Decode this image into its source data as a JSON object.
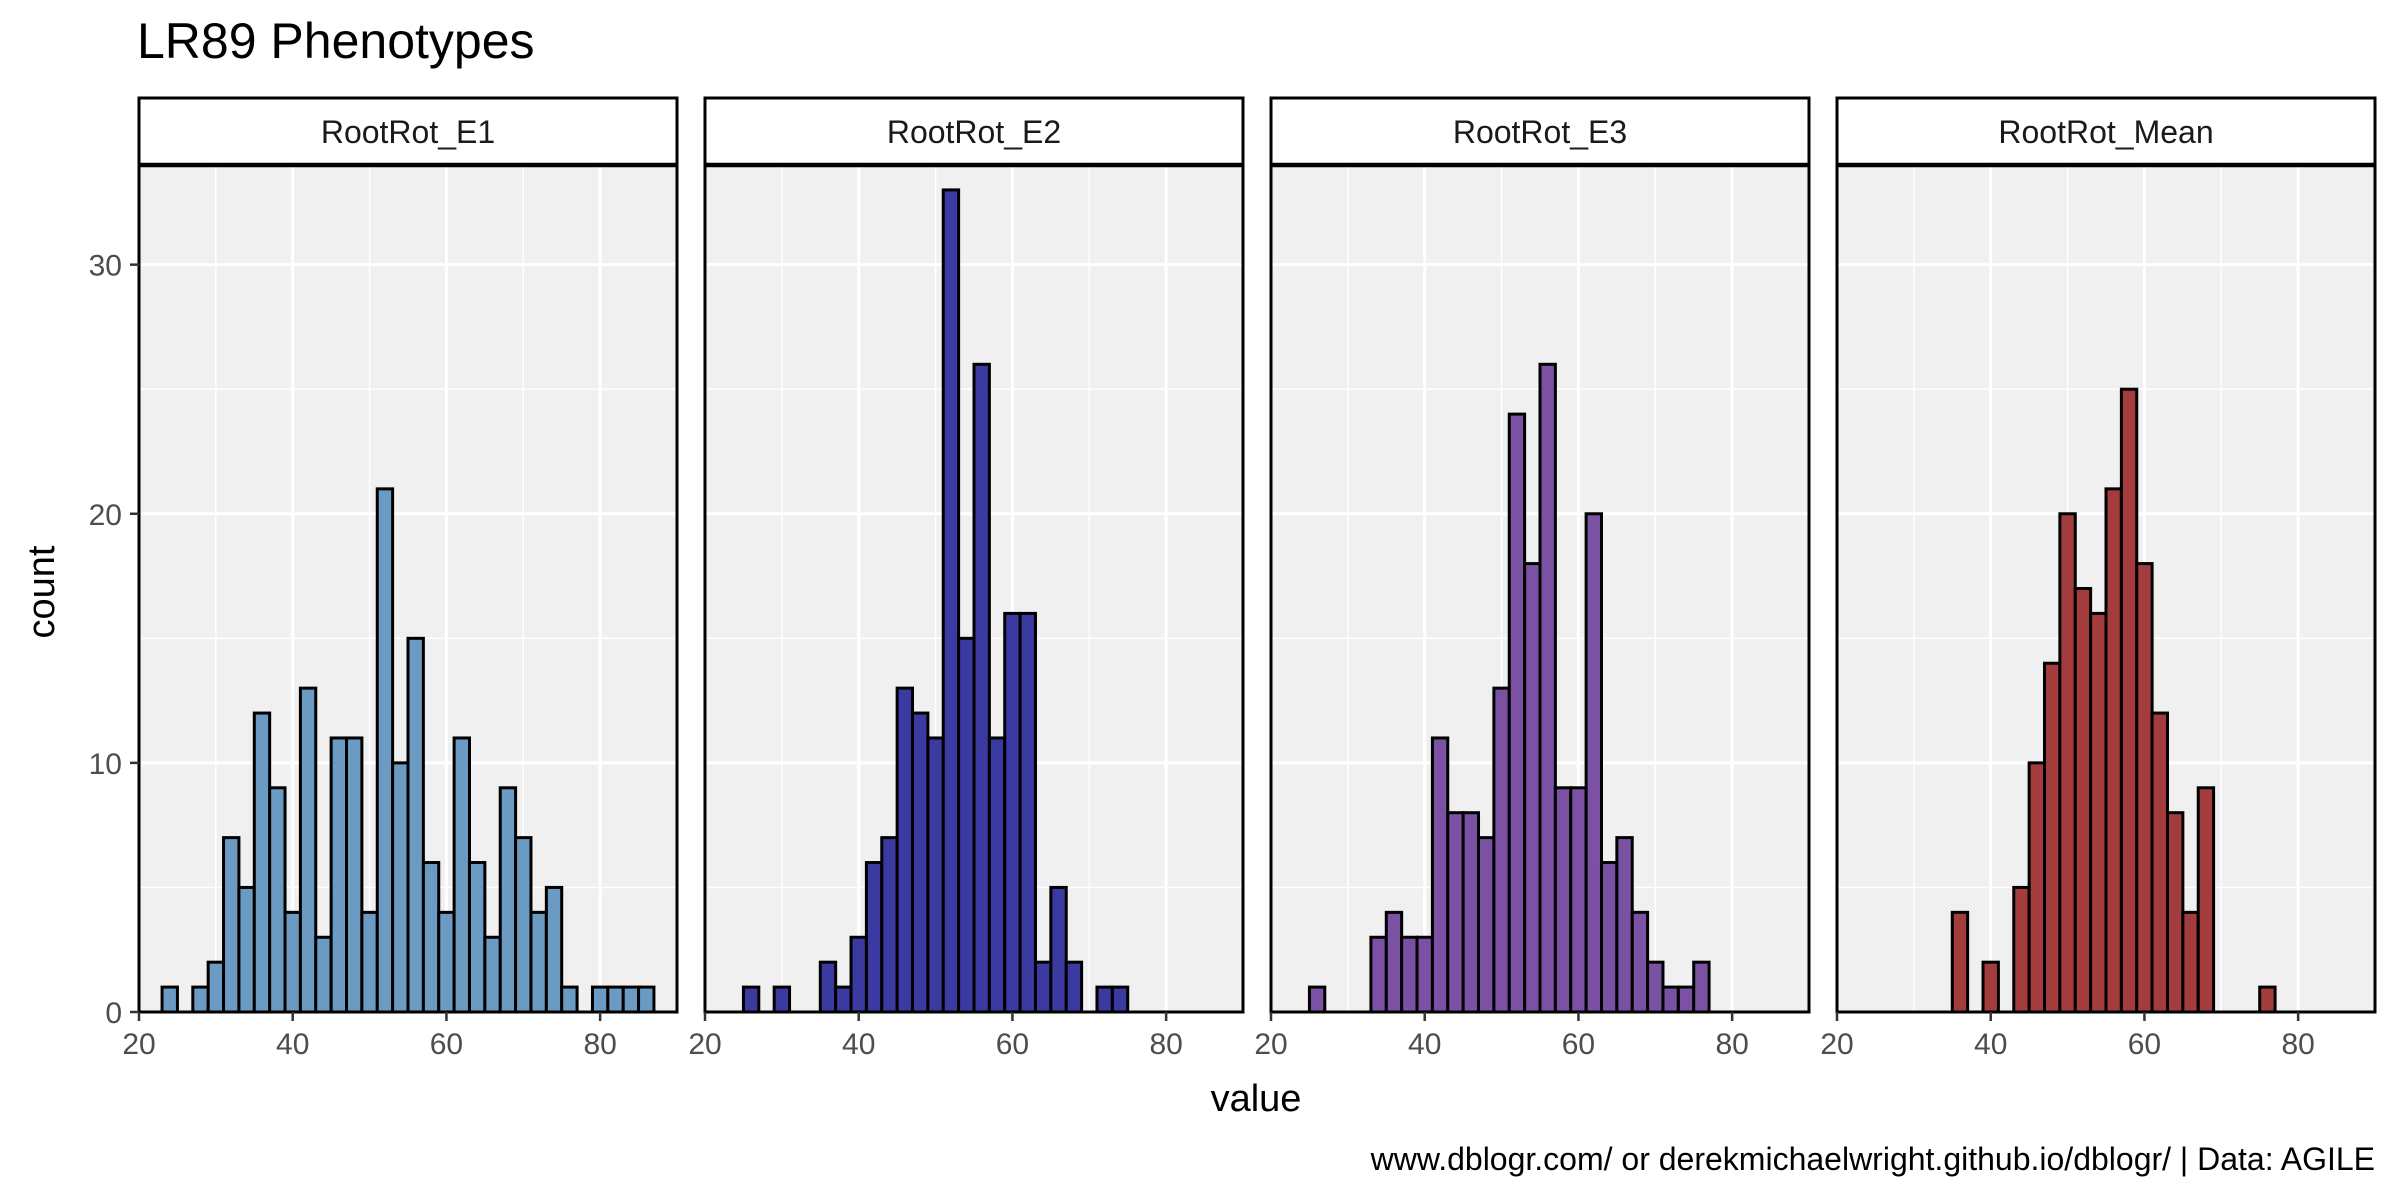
{
  "chart_data": {
    "type": "bar",
    "title": "LR89 Phenotypes",
    "xlabel": "value",
    "ylabel": "count",
    "caption": "www.dblogr.com/ or derekmichaelwright.github.io/dblogr/ | Data: AGILE",
    "xlim": [
      20,
      90
    ],
    "ylim": [
      0,
      34
    ],
    "x_ticks": [
      20,
      40,
      60,
      80
    ],
    "y_ticks": [
      0,
      10,
      20,
      30
    ],
    "bin_start": 23,
    "bin_width": 2,
    "grid": true,
    "legend": "none",
    "panels": [
      {
        "name": "RootRot_E1",
        "color": "#6b9bc3",
        "counts": [
          1,
          0,
          1,
          2,
          7,
          5,
          12,
          9,
          4,
          13,
          3,
          11,
          11,
          4,
          21,
          10,
          15,
          6,
          4,
          11,
          6,
          3,
          9,
          7,
          4,
          5,
          1,
          0,
          1,
          1,
          1,
          1
        ]
      },
      {
        "name": "RootRot_E2",
        "color": "#3b3aa0",
        "counts": [
          0,
          1,
          0,
          1,
          0,
          0,
          2,
          1,
          3,
          6,
          7,
          13,
          12,
          11,
          33,
          15,
          26,
          11,
          16,
          16,
          2,
          5,
          2,
          0,
          1,
          1,
          0,
          0,
          0,
          0,
          0,
          0
        ]
      },
      {
        "name": "RootRot_E3",
        "color": "#7b52a3",
        "counts": [
          0,
          1,
          0,
          0,
          0,
          3,
          4,
          3,
          3,
          11,
          8,
          8,
          7,
          13,
          24,
          18,
          26,
          9,
          9,
          20,
          6,
          7,
          4,
          2,
          1,
          1,
          2,
          0,
          0,
          0,
          0,
          0
        ]
      },
      {
        "name": "RootRot_Mean",
        "color": "#a33d3d",
        "counts": [
          0,
          0,
          0,
          0,
          0,
          0,
          4,
          0,
          2,
          0,
          5,
          10,
          14,
          20,
          17,
          16,
          21,
          25,
          18,
          12,
          8,
          4,
          9,
          0,
          0,
          0,
          1,
          0,
          0,
          0,
          0,
          0
        ]
      }
    ]
  }
}
